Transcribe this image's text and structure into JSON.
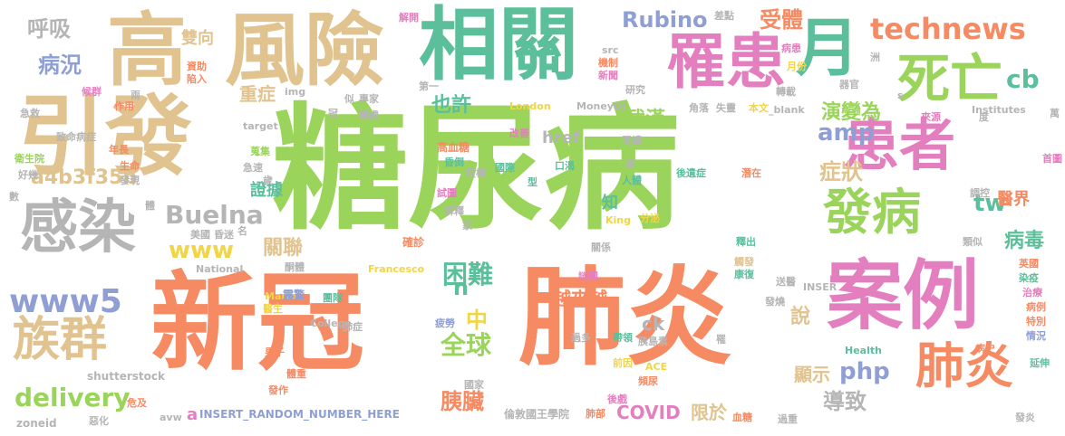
{
  "colors": {
    "green": "#9ad45a",
    "orange": "#f58a63",
    "tan": "#e0c38e",
    "teal": "#5cbf9b",
    "pink": "#e37fbf",
    "gray": "#b5b5b5",
    "blue": "#8f9fd3",
    "yellow": "#f2d545"
  },
  "words": [
    {
      "text": "糖尿病",
      "color": "green",
      "size": 150
    },
    {
      "text": "新冠",
      "color": "orange",
      "size": 118
    },
    {
      "text": "肺炎",
      "color": "orange",
      "size": 118
    },
    {
      "text": "引發",
      "color": "tan",
      "size": 96
    },
    {
      "text": "高",
      "color": "tan",
      "size": 88
    },
    {
      "text": "風險",
      "color": "tan",
      "size": 88
    },
    {
      "text": "相關",
      "color": "teal",
      "size": 88
    },
    {
      "text": "案例",
      "color": "pink",
      "size": 84
    },
    {
      "text": "罹患",
      "color": "pink",
      "size": 66
    },
    {
      "text": "月",
      "color": "teal",
      "size": 70
    },
    {
      "text": "死亡",
      "color": "green",
      "size": 58
    },
    {
      "text": "患者",
      "color": "pink",
      "size": 62
    },
    {
      "text": "感染",
      "color": "gray",
      "size": 64
    },
    {
      "text": "發病",
      "color": "green",
      "size": 54
    },
    {
      "text": "族群",
      "color": "tan",
      "size": 52
    },
    {
      "text": "肺炎",
      "color": "orange",
      "size": 54
    },
    {
      "text": "technews",
      "color": "orange",
      "size": 32
    },
    {
      "text": "www5",
      "color": "blue",
      "size": 36
    },
    {
      "text": "Buelna",
      "color": "gray",
      "size": 28
    },
    {
      "text": "delivery",
      "color": "green",
      "size": 28
    },
    {
      "text": "www",
      "color": "yellow",
      "size": 26
    },
    {
      "text": "Rubino",
      "color": "blue",
      "size": 24
    },
    {
      "text": "受體",
      "color": "orange",
      "size": 24
    },
    {
      "text": "cb",
      "color": "teal",
      "size": 28
    },
    {
      "text": "呼吸",
      "color": "gray",
      "size": 24
    },
    {
      "text": "病況",
      "color": "blue",
      "size": 24
    },
    {
      "text": "雙向",
      "color": "tan",
      "size": 18
    },
    {
      "text": "a4b3f35b",
      "color": "tan",
      "size": 22
    },
    {
      "text": "amp",
      "color": "blue",
      "size": 26
    },
    {
      "text": "重症",
      "color": "tan",
      "size": 20
    },
    {
      "text": "也許",
      "color": "teal",
      "size": 22
    },
    {
      "text": "武漢",
      "color": "green",
      "size": 22
    },
    {
      "text": "演變為",
      "color": "green",
      "size": 22
    },
    {
      "text": "症狀",
      "color": "tan",
      "size": 24
    },
    {
      "text": "證據",
      "color": "teal",
      "size": 18
    },
    {
      "text": "困難",
      "color": "teal",
      "size": 28
    },
    {
      "text": "中",
      "color": "yellow",
      "size": 24
    },
    {
      "text": "全球",
      "color": "green",
      "size": 28
    },
    {
      "text": "越來越",
      "color": "orange",
      "size": 20
    },
    {
      "text": "href",
      "color": "gray",
      "size": 18
    },
    {
      "text": "tw",
      "color": "teal",
      "size": 26
    },
    {
      "text": "醫界",
      "color": "orange",
      "size": 18
    },
    {
      "text": "病毒",
      "color": "teal",
      "size": 22
    },
    {
      "text": "關聯",
      "color": "tan",
      "size": 22
    },
    {
      "text": "n",
      "color": "teal",
      "size": 24
    },
    {
      "text": "說",
      "color": "tan",
      "size": 22
    },
    {
      "text": "顯示",
      "color": "tan",
      "size": 20
    },
    {
      "text": "php",
      "color": "blue",
      "size": 26
    },
    {
      "text": "導致",
      "color": "gray",
      "size": 24
    },
    {
      "text": "胰臟",
      "color": "orange",
      "size": 24
    },
    {
      "text": "ck",
      "color": "gray",
      "size": 20
    },
    {
      "text": "COVID",
      "color": "pink",
      "size": 20
    },
    {
      "text": "限於",
      "color": "tan",
      "size": 20
    },
    {
      "text": "a",
      "color": "pink",
      "size": 18
    },
    {
      "text": "知",
      "color": "teal",
      "size": 18
    },
    {
      "text": "zoneid",
      "color": "gray",
      "size": 12
    },
    {
      "text": "shutterstock",
      "color": "gray",
      "size": 12
    },
    {
      "text": "INSERT_RANDOM_NUMBER_HERE",
      "color": "blue",
      "size": 12
    },
    {
      "text": "倫敦國王學院",
      "color": "gray",
      "size": 12
    },
    {
      "text": "高血糖",
      "color": "orange",
      "size": 12
    },
    {
      "text": "Mario",
      "color": "yellow",
      "size": 11
    },
    {
      "text": "National",
      "color": "gray",
      "size": 11
    },
    {
      "text": "Francesco",
      "color": "yellow",
      "size": 11
    },
    {
      "text": "London",
      "color": "yellow",
      "size": 11
    },
    {
      "text": "MoneyDJ",
      "color": "gray",
      "size": 11
    },
    {
      "text": "Institutes",
      "color": "gray",
      "size": 11
    },
    {
      "text": "College",
      "color": "gray",
      "size": 11
    },
    {
      "text": "Health",
      "color": "teal",
      "size": 11
    },
    {
      "text": "King",
      "color": "yellow",
      "size": 11
    },
    {
      "text": "ACE",
      "color": "yellow",
      "size": 11
    },
    {
      "text": "INSER",
      "color": "gray",
      "size": 11
    },
    {
      "text": "_blank",
      "color": "gray",
      "size": 11
    },
    {
      "text": "target",
      "color": "gray",
      "size": 11
    },
    {
      "text": "src",
      "color": "gray",
      "size": 11
    },
    {
      "text": "img",
      "color": "gray",
      "size": 11
    },
    {
      "text": "avw",
      "color": "gray",
      "size": 11
    },
    {
      "text": "解釋",
      "color": "gray",
      "size": 11
    },
    {
      "text": "確診",
      "color": "orange",
      "size": 12
    },
    {
      "text": "關係",
      "color": "gray",
      "size": 11
    },
    {
      "text": "震驚",
      "color": "blue",
      "size": 12
    },
    {
      "text": "團隊",
      "color": "teal",
      "size": 11
    },
    {
      "text": "醫生",
      "color": "yellow",
      "size": 11
    },
    {
      "text": "男子",
      "color": "orange",
      "size": 11
    },
    {
      "text": "肺症",
      "color": "gray",
      "size": 11
    },
    {
      "text": "疲勞",
      "color": "blue",
      "size": 11
    },
    {
      "text": "過多",
      "color": "gray",
      "size": 11
    },
    {
      "text": "帶領",
      "color": "teal",
      "size": 11
    },
    {
      "text": "胰島素",
      "color": "gray",
      "size": 11
    },
    {
      "text": "謎團",
      "color": "pink",
      "size": 11
    },
    {
      "text": "國家",
      "color": "gray",
      "size": 11
    },
    {
      "text": "後遺症",
      "color": "teal",
      "size": 11
    },
    {
      "text": "潛在",
      "color": "orange",
      "size": 11
    },
    {
      "text": "前因",
      "color": "yellow",
      "size": 11
    },
    {
      "text": "頻尿",
      "color": "orange",
      "size": 11
    },
    {
      "text": "後戲",
      "color": "pink",
      "size": 11
    },
    {
      "text": "肺部",
      "color": "orange",
      "size": 11
    },
    {
      "text": "血糖",
      "color": "orange",
      "size": 11
    },
    {
      "text": "過重",
      "color": "gray",
      "size": 11
    },
    {
      "text": "發炎",
      "color": "gray",
      "size": 11
    },
    {
      "text": "延伸",
      "color": "teal",
      "size": 11
    },
    {
      "text": "病史",
      "color": "orange",
      "size": 11
    },
    {
      "text": "情況",
      "color": "blue",
      "size": 11
    },
    {
      "text": "特別",
      "color": "orange",
      "size": 11
    },
    {
      "text": "病例",
      "color": "orange",
      "size": 11
    },
    {
      "text": "治療",
      "color": "pink",
      "size": 11
    },
    {
      "text": "染疫",
      "color": "teal",
      "size": 11
    },
    {
      "text": "英國",
      "color": "orange",
      "size": 11
    },
    {
      "text": "類似",
      "color": "gray",
      "size": 11
    },
    {
      "text": "調控",
      "color": "gray",
      "size": 11
    },
    {
      "text": "首圖",
      "color": "pink",
      "size": 11
    },
    {
      "text": "來源",
      "color": "pink",
      "size": 11
    },
    {
      "text": "萬",
      "color": "gray",
      "size": 11
    },
    {
      "text": "度",
      "color": "gray",
      "size": 11
    },
    {
      "text": "轉載",
      "color": "gray",
      "size": 11
    },
    {
      "text": "器官",
      "color": "gray",
      "size": 11
    },
    {
      "text": "病患",
      "color": "pink",
      "size": 11
    },
    {
      "text": "月份",
      "color": "yellow",
      "size": 11
    },
    {
      "text": "洲",
      "color": "gray",
      "size": 11
    },
    {
      "text": "角落",
      "color": "gray",
      "size": 11
    },
    {
      "text": "失靈",
      "color": "gray",
      "size": 11
    },
    {
      "text": "本文",
      "color": "yellow",
      "size": 11
    },
    {
      "text": "差點",
      "color": "gray",
      "size": 11
    },
    {
      "text": "機制",
      "color": "orange",
      "size": 11
    },
    {
      "text": "新聞",
      "color": "pink",
      "size": 11
    },
    {
      "text": "研究",
      "color": "gray",
      "size": 11
    },
    {
      "text": "第一",
      "color": "gray",
      "size": 11
    },
    {
      "text": "專家",
      "color": "gray",
      "size": 11
    },
    {
      "text": "似",
      "color": "gray",
      "size": 11
    },
    {
      "text": "難處",
      "color": "gray",
      "size": 11
    },
    {
      "text": "冠",
      "color": "gray",
      "size": 11
    },
    {
      "text": "改善",
      "color": "pink",
      "size": 11
    },
    {
      "text": "閱讀",
      "color": "gray",
      "size": 11
    },
    {
      "text": "口渴",
      "color": "teal",
      "size": 11
    },
    {
      "text": "國際",
      "color": "teal",
      "size": 11
    },
    {
      "text": "型",
      "color": "teal",
      "size": 11
    },
    {
      "text": "人體",
      "color": "teal",
      "size": 11
    },
    {
      "text": "新",
      "color": "gray",
      "size": 11
    },
    {
      "text": "昏倒",
      "color": "teal",
      "size": 11
    },
    {
      "text": "授權",
      "color": "gray",
      "size": 11
    },
    {
      "text": "試圖",
      "color": "pink",
      "size": 11
    },
    {
      "text": "家",
      "color": "gray",
      "size": 11
    },
    {
      "text": "分泌",
      "color": "yellow",
      "size": 11
    },
    {
      "text": "釋出",
      "color": "teal",
      "size": 11
    },
    {
      "text": "觸發",
      "color": "tan",
      "size": 11
    },
    {
      "text": "康復",
      "color": "teal",
      "size": 11
    },
    {
      "text": "送醫",
      "color": "gray",
      "size": 11
    },
    {
      "text": "發燒",
      "color": "gray",
      "size": 11
    },
    {
      "text": "罹",
      "color": "gray",
      "size": 11
    },
    {
      "text": "解開",
      "color": "pink",
      "size": 11
    },
    {
      "text": "資助",
      "color": "orange",
      "size": 11
    },
    {
      "text": "陷入",
      "color": "orange",
      "size": 11
    },
    {
      "text": "候群",
      "color": "pink",
      "size": 11
    },
    {
      "text": "兩",
      "color": "gray",
      "size": 11
    },
    {
      "text": "作用",
      "color": "orange",
      "size": 11
    },
    {
      "text": "急救",
      "color": "gray",
      "size": 11
    },
    {
      "text": "致命病症",
      "color": "gray",
      "size": 11
    },
    {
      "text": "衛生院",
      "color": "green",
      "size": 11
    },
    {
      "text": "好幾",
      "color": "gray",
      "size": 11
    },
    {
      "text": "年長",
      "color": "orange",
      "size": 11
    },
    {
      "text": "生命",
      "color": "orange",
      "size": 11
    },
    {
      "text": "發現",
      "color": "gray",
      "size": 11
    },
    {
      "text": "數",
      "color": "gray",
      "size": 11
    },
    {
      "text": "體",
      "color": "gray",
      "size": 11
    },
    {
      "text": "蒐集",
      "color": "green",
      "size": 11
    },
    {
      "text": "急速",
      "color": "gray",
      "size": 11
    },
    {
      "text": "歲",
      "color": "gray",
      "size": 11
    },
    {
      "text": "美國",
      "color": "gray",
      "size": 11
    },
    {
      "text": "昏迷",
      "color": "gray",
      "size": 11
    },
    {
      "text": "名",
      "color": "gray",
      "size": 11
    },
    {
      "text": "酮體",
      "color": "gray",
      "size": 11
    },
    {
      "text": "體重",
      "color": "orange",
      "size": 11
    },
    {
      "text": "發作",
      "color": "orange",
      "size": 11
    },
    {
      "text": "惡化",
      "color": "gray",
      "size": 11
    },
    {
      "text": "危及",
      "color": "orange",
      "size": 11
    },
    {
      "text": "s",
      "color": "gray",
      "size": 11
    }
  ]
}
